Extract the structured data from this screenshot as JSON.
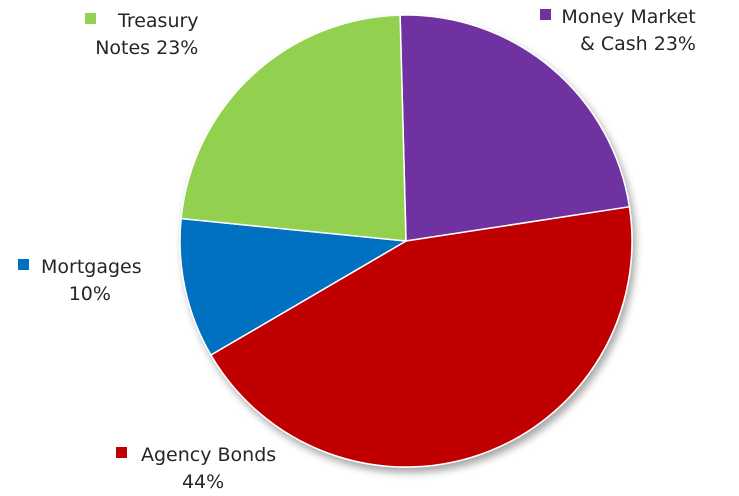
{
  "chart_data": {
    "type": "pie",
    "title": "",
    "slices": [
      {
        "label_lines": [
          "Money Market",
          "& Cash 23%"
        ],
        "category": "Money Market & Cash",
        "value": 23,
        "color": "#7030A0"
      },
      {
        "label_lines": [
          "Agency Bonds",
          "44%"
        ],
        "category": "Agency Bonds",
        "value": 44,
        "color": "#C00000"
      },
      {
        "label_lines": [
          "Mortgages",
          "10%"
        ],
        "category": "Mortgages",
        "value": 10,
        "color": "#0070C0"
      },
      {
        "label_lines": [
          "Treasury",
          "Notes 23%"
        ],
        "category": "Treasury Notes",
        "value": 23,
        "color": "#92D050"
      }
    ],
    "legend": "none",
    "labels": "outside-with-color-markers"
  }
}
